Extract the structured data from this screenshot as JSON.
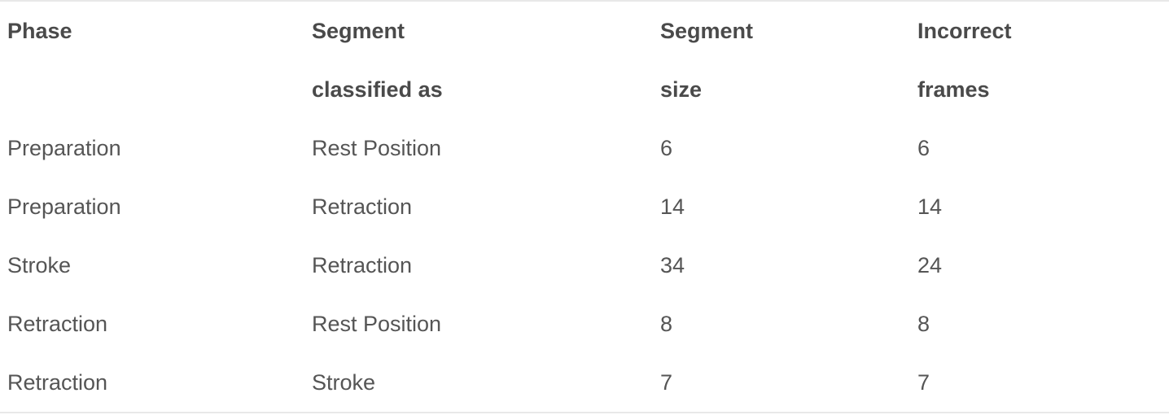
{
  "table": {
    "header_row_1": [
      "Phase",
      "Segment",
      "Segment",
      "Incorrect"
    ],
    "header_row_2": [
      "",
      "classified as",
      "size",
      "frames"
    ],
    "rows": [
      [
        "Preparation",
        "Rest Position",
        "6",
        "6"
      ],
      [
        "Preparation",
        "Retraction",
        "14",
        "14"
      ],
      [
        "Stroke",
        "Retraction",
        "34",
        "24"
      ],
      [
        "Retraction",
        "Rest Position",
        "8",
        "8"
      ],
      [
        "Retraction",
        "Stroke",
        "7",
        "7"
      ]
    ]
  }
}
